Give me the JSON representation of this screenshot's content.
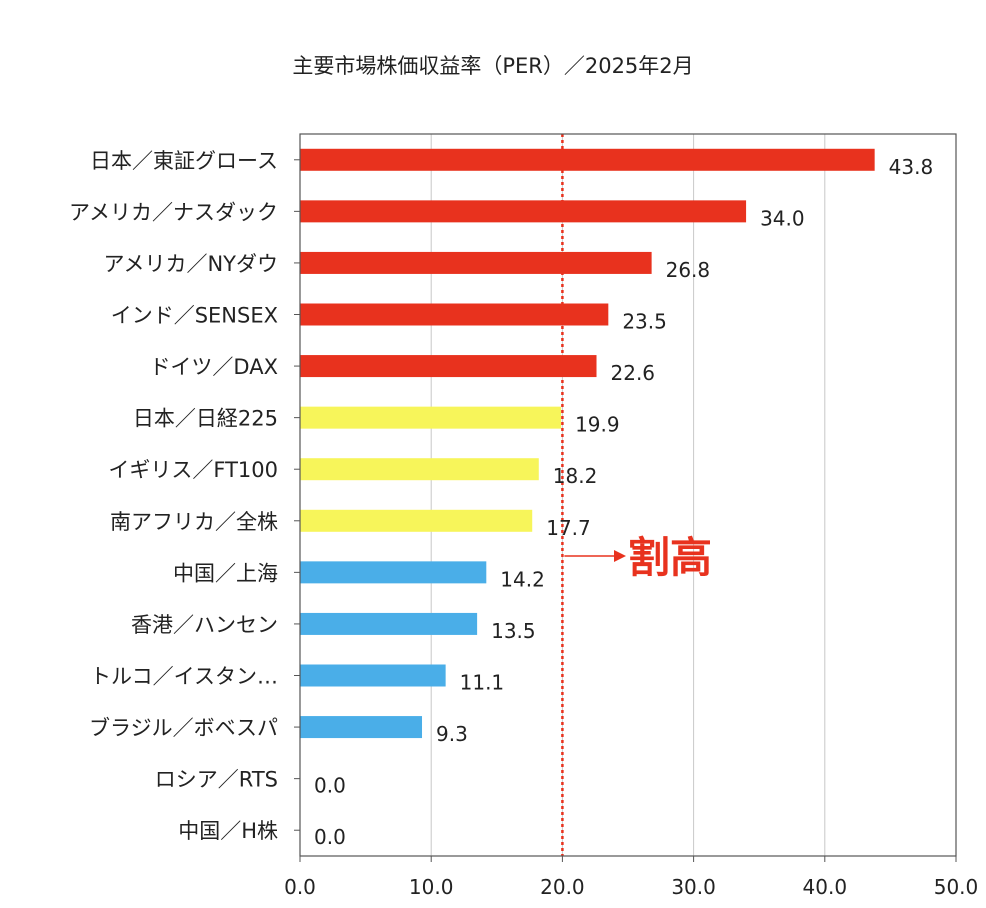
{
  "chart_data": {
    "type": "bar",
    "orientation": "horizontal",
    "title": "主要市場株価収益率（PER）／2025年2月",
    "categories": [
      "日本／東証グロース",
      "アメリカ／ナスダック",
      "アメリカ／NYダウ",
      "インド／SENSEX",
      "ドイツ／DAX",
      "日本／日経225",
      "イギリス／FT100",
      "南アフリカ／全株",
      "中国／上海",
      "香港／ハンセン",
      "トルコ／イスタン…",
      "ブラジル／ボベスパ",
      "ロシア／RTS",
      "中国／H株"
    ],
    "values": [
      43.8,
      34.0,
      26.8,
      23.5,
      22.6,
      19.9,
      18.2,
      17.7,
      14.2,
      13.5,
      11.1,
      9.3,
      0.0,
      0.0
    ],
    "value_labels": [
      "43.8",
      "34.0",
      "26.8",
      "23.5",
      "22.6",
      "19.9",
      "18.2",
      "17.7",
      "14.2",
      "13.5",
      "11.1",
      "9.3",
      "0.0",
      "0.0"
    ],
    "bar_colors": [
      "#e8321e",
      "#e8321e",
      "#e8321e",
      "#e8321e",
      "#e8321e",
      "#f7f55a",
      "#f7f55a",
      "#f7f55a",
      "#4aaee8",
      "#4aaee8",
      "#4aaee8",
      "#4aaee8",
      "#4aaee8",
      "#4aaee8"
    ],
    "xlim": [
      0,
      50
    ],
    "x_ticks": [
      0,
      10,
      20,
      30,
      40,
      50
    ],
    "x_tick_labels": [
      "0.0",
      "10.0",
      "20.0",
      "30.0",
      "40.0",
      "50.0"
    ],
    "grid": true,
    "reference_line": {
      "value": 20,
      "color": "#e8321e",
      "style": "dotted"
    },
    "annotation": {
      "text": "割高",
      "color": "#e8321e"
    }
  }
}
